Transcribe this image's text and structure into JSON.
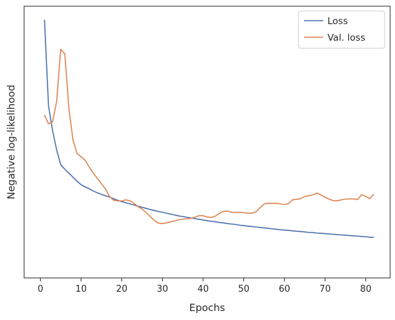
{
  "chart_data": {
    "type": "line",
    "title": "",
    "xlabel": "Epochs",
    "ylabel": "Negative log-likelihood",
    "xlim": [
      -4,
      86
    ],
    "ylim": [
      -0.3,
      11.7
    ],
    "xticks": [
      0,
      10,
      20,
      30,
      40,
      50,
      60,
      70,
      80
    ],
    "yticks_shown": false,
    "grid": false,
    "legend_position": "top-right",
    "series": [
      {
        "name": "Loss",
        "color": "#4c72b0",
        "x": [
          1,
          2,
          3,
          4,
          5,
          6,
          7,
          8,
          9,
          10,
          11,
          12,
          13,
          14,
          15,
          16,
          17,
          18,
          19,
          20,
          21,
          22,
          23,
          24,
          25,
          26,
          27,
          28,
          29,
          30,
          31,
          32,
          33,
          34,
          35,
          36,
          37,
          38,
          39,
          40,
          41,
          42,
          43,
          44,
          45,
          46,
          47,
          48,
          49,
          50,
          51,
          52,
          53,
          54,
          55,
          56,
          57,
          58,
          59,
          60,
          61,
          62,
          63,
          64,
          65,
          65,
          66,
          67,
          68,
          69,
          70,
          71,
          72,
          73,
          74,
          75,
          76,
          77,
          78,
          79,
          80,
          81,
          82
        ],
        "y": [
          11.1,
          7.3,
          6.2,
          5.35,
          4.7,
          4.5,
          4.33,
          4.15,
          3.97,
          3.82,
          3.72,
          3.64,
          3.54,
          3.46,
          3.39,
          3.33,
          3.27,
          3.2,
          3.13,
          3.07,
          3.02,
          2.97,
          2.92,
          2.87,
          2.82,
          2.77,
          2.72,
          2.68,
          2.64,
          2.6,
          2.56,
          2.52,
          2.48,
          2.44,
          2.41,
          2.38,
          2.35,
          2.32,
          2.29,
          2.26,
          2.23,
          2.2,
          2.18,
          2.15,
          2.13,
          2.1,
          2.08,
          2.06,
          2.03,
          2.01,
          1.99,
          1.97,
          1.95,
          1.93,
          1.91,
          1.89,
          1.87,
          1.85,
          1.83,
          1.81,
          1.8,
          1.78,
          1.76,
          1.75,
          1.73,
          1.73,
          1.71,
          1.7,
          1.68,
          1.67,
          1.66,
          1.64,
          1.63,
          1.61,
          1.6,
          1.59,
          1.57,
          1.56,
          1.55,
          1.53,
          1.52,
          1.5,
          1.49
        ]
      },
      {
        "name": "Val. loss",
        "color": "#dd8452",
        "x": [
          1,
          2,
          3,
          4,
          5,
          6,
          7,
          8,
          9,
          10,
          11,
          12,
          13,
          14,
          15,
          16,
          17,
          18,
          19,
          20,
          21,
          22,
          23,
          24,
          25,
          26,
          27,
          28,
          29,
          30,
          31,
          32,
          33,
          34,
          35,
          36,
          37,
          38,
          39,
          40,
          41,
          42,
          43,
          44,
          45,
          46,
          47,
          48,
          49,
          50,
          51,
          52,
          53,
          54,
          55,
          56,
          57,
          58,
          59,
          60,
          61,
          62,
          63,
          64,
          65,
          66,
          67,
          68,
          69,
          70,
          71,
          72,
          73,
          74,
          75,
          76,
          77,
          78,
          79,
          80,
          81,
          82
        ],
        "y": [
          6.9,
          6.5,
          6.6,
          7.5,
          9.8,
          9.6,
          7.2,
          5.8,
          5.2,
          5.05,
          4.9,
          4.6,
          4.33,
          4.1,
          3.86,
          3.63,
          3.3,
          3.13,
          3.1,
          3.1,
          3.15,
          3.11,
          3.0,
          2.85,
          2.74,
          2.59,
          2.42,
          2.24,
          2.12,
          2.1,
          2.13,
          2.18,
          2.22,
          2.27,
          2.3,
          2.31,
          2.33,
          2.38,
          2.45,
          2.45,
          2.39,
          2.37,
          2.43,
          2.55,
          2.64,
          2.65,
          2.6,
          2.59,
          2.6,
          2.58,
          2.56,
          2.56,
          2.62,
          2.8,
          2.96,
          3.0,
          2.99,
          3.0,
          2.97,
          2.94,
          2.98,
          3.15,
          3.17,
          3.2,
          3.3,
          3.33,
          3.37,
          3.45,
          3.36,
          3.26,
          3.18,
          3.11,
          3.11,
          3.15,
          3.18,
          3.19,
          3.19,
          3.16,
          3.38,
          3.3,
          3.2,
          3.4
        ]
      }
    ]
  }
}
